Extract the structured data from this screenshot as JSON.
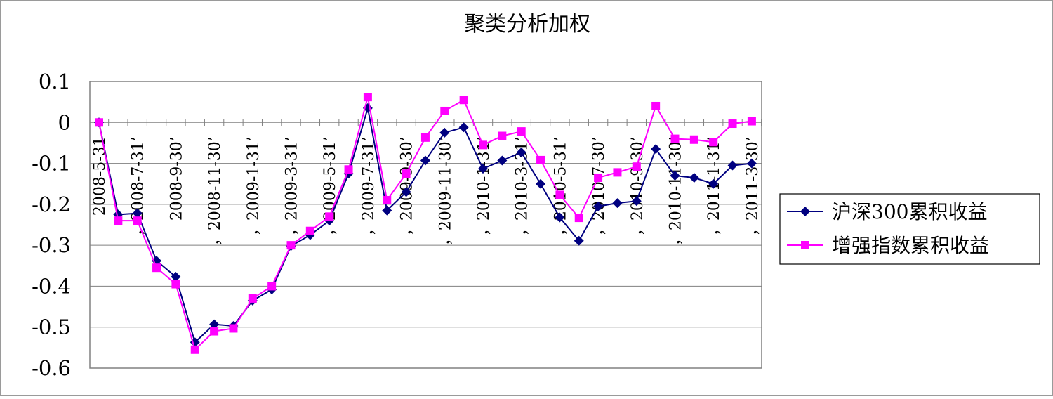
{
  "chart_data": {
    "type": "line",
    "title": "聚类分析加权",
    "xlabel": "",
    "ylabel": "",
    "ylim": [
      -0.6,
      0.1
    ],
    "yticks": [
      0.1,
      0,
      -0.1,
      -0.2,
      -0.3,
      -0.4,
      -0.5,
      -0.6
    ],
    "ytick_labels": [
      "0.1",
      "0",
      "-0.1",
      "-0.2",
      "-0.3",
      "-0.4",
      "-0.5",
      "-0.6"
    ],
    "grid": true,
    "legend_position": "right",
    "x_tick_labels": [
      {
        "index": 0,
        "label": "2008-5-31"
      },
      {
        "index": 2,
        "label": "，2008-7-31’"
      },
      {
        "index": 4,
        "label": "2008-9-30’"
      },
      {
        "index": 6,
        "label": "，2008-11-30’"
      },
      {
        "index": 8,
        "label": "，2009-1-31’"
      },
      {
        "index": 10,
        "label": "，2009-3-31’"
      },
      {
        "index": 12,
        "label": "，2009-5-31’"
      },
      {
        "index": 14,
        "label": "，2009-7-31’"
      },
      {
        "index": 16,
        "label": "，2009-9-30’"
      },
      {
        "index": 18,
        "label": "，2009-11-30’"
      },
      {
        "index": 20,
        "label": "，2010-1-31’"
      },
      {
        "index": 22,
        "label": "，2010-3-31’"
      },
      {
        "index": 24,
        "label": "，2010-5-31’"
      },
      {
        "index": 26,
        "label": "，2010-7-30’"
      },
      {
        "index": 28,
        "label": "，2010-9-30’"
      },
      {
        "index": 30,
        "label": "，2010-11-30’"
      },
      {
        "index": 32,
        "label": "，2011-1-31’"
      },
      {
        "index": 34,
        "label": "，2011-3-30’"
      }
    ],
    "series": [
      {
        "name": "沪深300累积收益",
        "color": "#000080",
        "marker": "diamond",
        "values": [
          0.0,
          -0.225,
          -0.222,
          -0.338,
          -0.377,
          -0.537,
          -0.493,
          -0.497,
          -0.435,
          -0.408,
          -0.302,
          -0.275,
          -0.24,
          -0.125,
          0.035,
          -0.215,
          -0.17,
          -0.093,
          -0.025,
          -0.012,
          -0.113,
          -0.093,
          -0.073,
          -0.15,
          -0.232,
          -0.289,
          -0.205,
          -0.197,
          -0.192,
          -0.065,
          -0.13,
          -0.135,
          -0.15,
          -0.105,
          -0.1
        ]
      },
      {
        "name": "增强指数累积收益",
        "color": "#ff00ff",
        "marker": "square",
        "values": [
          0.0,
          -0.24,
          -0.24,
          -0.355,
          -0.395,
          -0.555,
          -0.51,
          -0.503,
          -0.43,
          -0.4,
          -0.3,
          -0.265,
          -0.23,
          -0.115,
          0.062,
          -0.19,
          -0.125,
          -0.037,
          0.028,
          0.055,
          -0.055,
          -0.033,
          -0.022,
          -0.092,
          -0.177,
          -0.233,
          -0.135,
          -0.122,
          -0.108,
          0.04,
          -0.04,
          -0.042,
          -0.048,
          -0.003,
          0.003
        ]
      }
    ]
  }
}
